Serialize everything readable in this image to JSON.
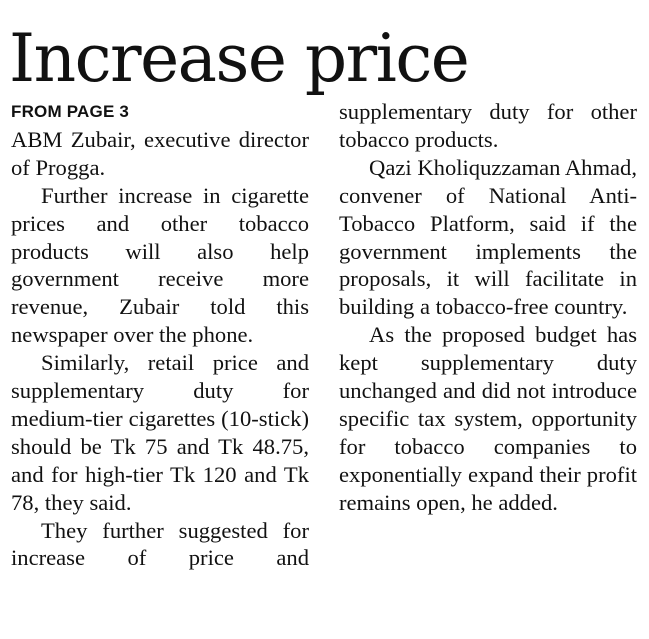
{
  "article": {
    "headline": "Increase price",
    "kicker": "FROM PAGE 3",
    "left_column": [
      "ABM Zubair, executive director of Progga.",
      "Further increase in cigarette prices and other tobacco products will also help government receive more revenue, Zubair told this newspaper over the phone.",
      "Similarly, retail price and supplementary duty for medium-tier cigarettes (10-stick) should be Tk 75 and Tk 48.75, and for high-tier Tk 120 and Tk 78, they said.",
      "They further suggested for increase of price and"
    ],
    "right_column": [
      "supplementary duty for other tobacco products.",
      "Qazi Kholiquzzaman Ahmad, convener of National Anti-Tobacco Platform, said if the government implements the proposals, it will facilitate in building a tobacco-free country.",
      "As the proposed budget has kept supplementary duty unchanged and did not introduce specific tax system, opportunity for tobacco companies to exponentially expand their profit remains open, he added."
    ]
  }
}
